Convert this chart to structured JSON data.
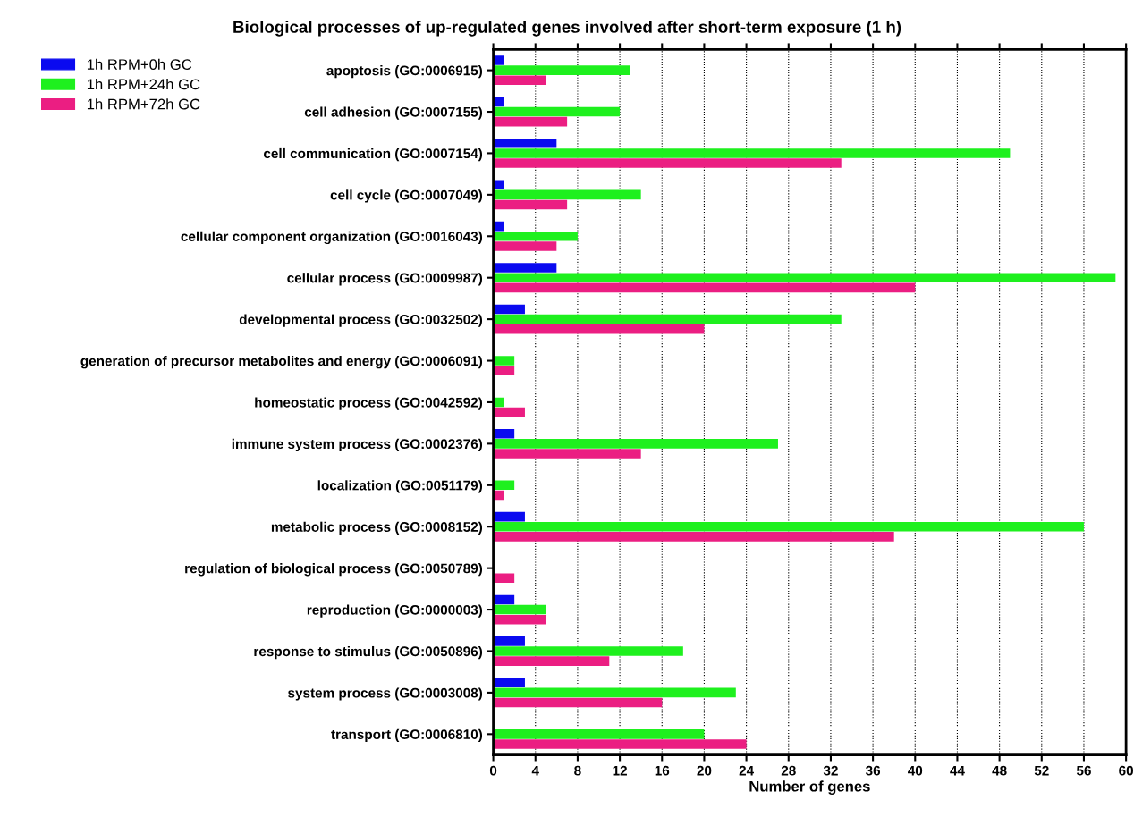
{
  "chart_data": {
    "type": "bar",
    "orientation": "horizontal",
    "title": "Biological processes of up-regulated genes involved after short-term exposure (1 h)",
    "xlabel": "Number of genes",
    "categories": [
      "apoptosis (GO:0006915)",
      "cell adhesion (GO:0007155)",
      "cell communication (GO:0007154)",
      "cell cycle (GO:0007049)",
      "cellular component organization (GO:0016043)",
      "cellular process (GO:0009987)",
      "developmental process (GO:0032502)",
      "generation of precursor metabolites and energy (GO:0006091)",
      "homeostatic process (GO:0042592)",
      "immune system process (GO:0002376)",
      "localization (GO:0051179)",
      "metabolic process (GO:0008152)",
      "regulation of biological process (GO:0050789)",
      "reproduction (GO:0000003)",
      "response to stimulus (GO:0050896)",
      "system process (GO:0003008)",
      "transport (GO:0006810)"
    ],
    "series": [
      {
        "name": "1h RPM+0h GC",
        "color": "#0a0af0",
        "values": [
          1,
          1,
          6,
          1,
          1,
          6,
          3,
          0,
          0,
          2,
          0,
          3,
          0,
          2,
          3,
          3,
          0
        ]
      },
      {
        "name": "1h RPM+24h GC",
        "color": "#1ef01e",
        "values": [
          13,
          12,
          49,
          14,
          8,
          59,
          33,
          2,
          1,
          27,
          2,
          56,
          0,
          5,
          18,
          23,
          20
        ]
      },
      {
        "name": "1h RPM+72h GC",
        "color": "#eb1e82",
        "values": [
          5,
          7,
          33,
          7,
          6,
          40,
          20,
          2,
          3,
          14,
          1,
          38,
          2,
          5,
          11,
          16,
          24
        ]
      }
    ],
    "xlim": [
      0,
      60
    ],
    "xticks": [
      0,
      4,
      8,
      12,
      16,
      20,
      24,
      28,
      32,
      36,
      40,
      44,
      48,
      52,
      56,
      60
    ],
    "grid": "x",
    "legend": "top left"
  }
}
